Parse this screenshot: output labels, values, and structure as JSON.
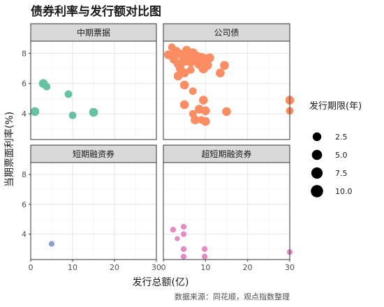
{
  "chart_data": {
    "type": "scatter",
    "title": "债券利率与发行额对比图",
    "xlabel": "发行总额(亿)",
    "ylabel": "当期票面利率(%)",
    "source": "数据来源：同花顺，观点指数整理",
    "xlim": [
      0,
      30
    ],
    "ylim": [
      2.3,
      8.8
    ],
    "x_ticks": [
      0,
      10,
      20,
      30
    ],
    "y_ticks": [
      4,
      6,
      8
    ],
    "grid": true,
    "legend": {
      "title": "发行期限(年)",
      "placement": "right",
      "items": [
        {
          "label": "2.5",
          "value": 2.5
        },
        {
          "label": "5.0",
          "value": 5.0
        },
        {
          "label": "7.5",
          "value": 7.5
        },
        {
          "label": "10.0",
          "value": 10.0
        }
      ]
    },
    "facets": [
      {
        "name": "中期票据",
        "color": "#66c2a5",
        "points": [
          {
            "x": 1,
            "y": 4.15,
            "term": 5
          },
          {
            "x": 3,
            "y": 6.0,
            "term": 5
          },
          {
            "x": 3.8,
            "y": 5.8,
            "term": 3
          },
          {
            "x": 9,
            "y": 5.3,
            "term": 3
          },
          {
            "x": 10,
            "y": 3.9,
            "term": 3
          },
          {
            "x": 15,
            "y": 4.1,
            "term": 5
          }
        ]
      },
      {
        "name": "公司债",
        "color": "#fc8d62",
        "points": [
          {
            "x": 1.2,
            "y": 7.9,
            "term": 5
          },
          {
            "x": 2.0,
            "y": 8.4,
            "term": 3
          },
          {
            "x": 2.5,
            "y": 7.6,
            "term": 5
          },
          {
            "x": 3.0,
            "y": 8.1,
            "term": 7
          },
          {
            "x": 3.5,
            "y": 7.3,
            "term": 5
          },
          {
            "x": 4.0,
            "y": 7.0,
            "term": 5
          },
          {
            "x": 4.5,
            "y": 7.9,
            "term": 7
          },
          {
            "x": 5.0,
            "y": 7.5,
            "term": 7
          },
          {
            "x": 5.5,
            "y": 8.2,
            "term": 5
          },
          {
            "x": 6.0,
            "y": 7.8,
            "term": 7
          },
          {
            "x": 6.5,
            "y": 7.4,
            "term": 5
          },
          {
            "x": 7.0,
            "y": 8.0,
            "term": 7
          },
          {
            "x": 7.5,
            "y": 7.6,
            "term": 7
          },
          {
            "x": 8.0,
            "y": 7.8,
            "term": 5
          },
          {
            "x": 8.5,
            "y": 7.3,
            "term": 7
          },
          {
            "x": 9.0,
            "y": 7.7,
            "term": 7
          },
          {
            "x": 9.5,
            "y": 7.0,
            "term": 7
          },
          {
            "x": 10.0,
            "y": 7.6,
            "term": 7
          },
          {
            "x": 10.5,
            "y": 7.2,
            "term": 5
          },
          {
            "x": 11.0,
            "y": 7.7,
            "term": 5
          },
          {
            "x": 13.5,
            "y": 6.7,
            "term": 5
          },
          {
            "x": 14.5,
            "y": 7.2,
            "term": 5
          },
          {
            "x": 3.5,
            "y": 6.5,
            "term": 5
          },
          {
            "x": 5.0,
            "y": 6.7,
            "term": 5
          },
          {
            "x": 5.0,
            "y": 5.9,
            "term": 5
          },
          {
            "x": 6.5,
            "y": 6.9,
            "term": 3
          },
          {
            "x": 7.0,
            "y": 5.5,
            "term": 3
          },
          {
            "x": 5.0,
            "y": 4.6,
            "term": 5
          },
          {
            "x": 7.0,
            "y": 4.0,
            "term": 3
          },
          {
            "x": 8.5,
            "y": 4.3,
            "term": 5
          },
          {
            "x": 9.5,
            "y": 4.9,
            "term": 5
          },
          {
            "x": 10.0,
            "y": 4.2,
            "term": 5
          },
          {
            "x": 7.5,
            "y": 3.6,
            "term": 5
          },
          {
            "x": 9.0,
            "y": 3.6,
            "term": 3
          },
          {
            "x": 10.0,
            "y": 3.5,
            "term": 5
          },
          {
            "x": 15.0,
            "y": 4.15,
            "term": 5
          },
          {
            "x": 30.0,
            "y": 4.9,
            "term": 5
          },
          {
            "x": 30.0,
            "y": 4.2,
            "term": 3
          }
        ]
      },
      {
        "name": "短期融资券",
        "color": "#8da0cb",
        "points": [
          {
            "x": 5,
            "y": 3.35,
            "term": 1
          }
        ]
      },
      {
        "name": "超短期融资券",
        "color": "#e78ac3",
        "points": [
          {
            "x": 2.3,
            "y": 4.3,
            "term": 1
          },
          {
            "x": 3.3,
            "y": 3.7,
            "term": 0.5
          },
          {
            "x": 4.8,
            "y": 4.5,
            "term": 1
          },
          {
            "x": 4.8,
            "y": 4.0,
            "term": 1
          },
          {
            "x": 4.8,
            "y": 3.0,
            "term": 1
          },
          {
            "x": 4.8,
            "y": 2.5,
            "term": 1
          },
          {
            "x": 9.8,
            "y": 3.0,
            "term": 1
          },
          {
            "x": 9.8,
            "y": 2.5,
            "term": 1
          },
          {
            "x": 30,
            "y": 2.8,
            "term": 1
          }
        ]
      }
    ]
  }
}
